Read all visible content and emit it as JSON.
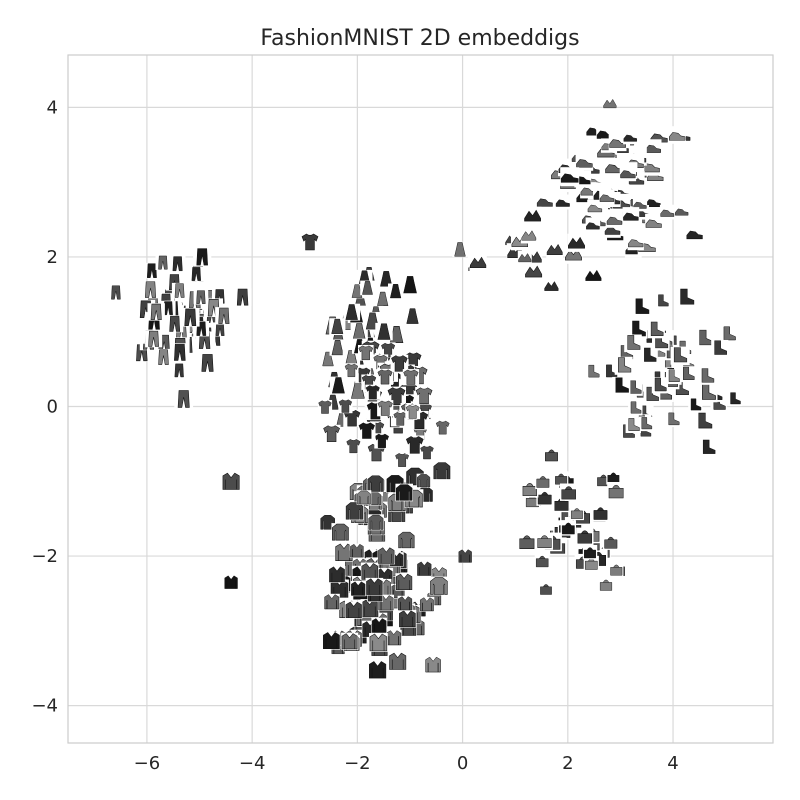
{
  "chart_data": {
    "type": "scatter",
    "title": "FashionMNIST 2D embeddigs",
    "xlabel": "",
    "ylabel": "",
    "xlim": [
      -7.5,
      5.9
    ],
    "ylim": [
      -4.5,
      4.7
    ],
    "xticks": [
      -6,
      -4,
      -2,
      0,
      2,
      4
    ],
    "yticks": [
      4,
      2,
      0,
      -2,
      -4
    ],
    "xtick_labels": [
      "−6",
      "−4",
      "−2",
      "0",
      "2",
      "4"
    ],
    "ytick_labels": [
      "4",
      "2",
      "0",
      "−2",
      "−4"
    ],
    "grid": true,
    "background": "#ffffff",
    "gridColor": "#d9d9d9",
    "markerStyle": "thumbnail",
    "clusters": [
      {
        "center": [
          -5.3,
          1.2
        ],
        "spread": [
          0.7,
          0.5
        ],
        "count": 60,
        "shape": "trouser"
      },
      {
        "center": [
          -1.9,
          0.9
        ],
        "spread": [
          0.55,
          0.7
        ],
        "count": 45,
        "shape": "dress"
      },
      {
        "center": [
          -1.3,
          0.0
        ],
        "spread": [
          0.65,
          0.55
        ],
        "count": 55,
        "shape": "tshirt"
      },
      {
        "center": [
          -1.6,
          -2.6
        ],
        "spread": [
          0.7,
          0.6
        ],
        "count": 75,
        "shape": "coat"
      },
      {
        "center": [
          -1.6,
          -1.3
        ],
        "spread": [
          0.7,
          0.4
        ],
        "count": 35,
        "shape": "pullover"
      },
      {
        "center": [
          2.8,
          3.0
        ],
        "spread": [
          0.85,
          0.55
        ],
        "count": 80,
        "shape": "sneaker"
      },
      {
        "center": [
          3.9,
          0.5
        ],
        "spread": [
          0.85,
          0.6
        ],
        "count": 55,
        "shape": "boot"
      },
      {
        "center": [
          1.5,
          2.0
        ],
        "spread": [
          0.7,
          0.3
        ],
        "count": 15,
        "shape": "sandal"
      },
      {
        "center": [
          2.2,
          -1.6
        ],
        "spread": [
          0.7,
          0.6
        ],
        "count": 45,
        "shape": "bag"
      }
    ],
    "singles": [
      {
        "x": -4.4,
        "y": -1.0,
        "shape": "coat"
      },
      {
        "x": -4.4,
        "y": -2.35,
        "shape": "coat"
      },
      {
        "x": -5.3,
        "y": 0.1,
        "shape": "trouser"
      },
      {
        "x": -4.95,
        "y": 2.0,
        "shape": "trouser"
      },
      {
        "x": -2.9,
        "y": 2.2,
        "shape": "tshirt"
      },
      {
        "x": -0.05,
        "y": 2.1,
        "shape": "dress"
      },
      {
        "x": 0.05,
        "y": -2.0,
        "shape": "coat"
      },
      {
        "x": -0.45,
        "y": -2.4,
        "shape": "pullover"
      },
      {
        "x": 2.8,
        "y": 4.05,
        "shape": "sandal"
      }
    ]
  }
}
